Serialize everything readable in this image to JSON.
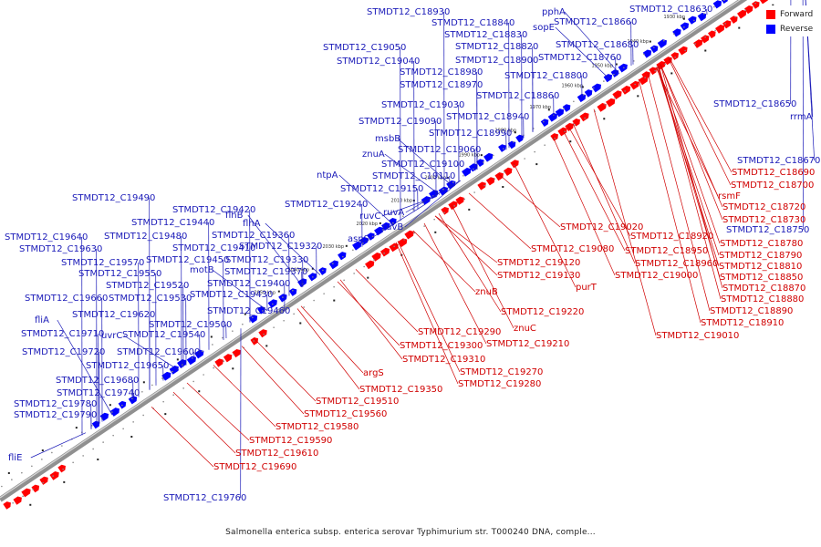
{
  "caption": "Salmonella enterica subsp. enterica serovar Typhimurium str. T000240 DNA, comple...",
  "legend": {
    "forward_label": "Forward",
    "reverse_label": "Reverse",
    "forward_color": "#ff0000",
    "reverse_color": "#0000ff"
  },
  "colors": {
    "forward_text": "#d00000",
    "reverse_text": "#1a1ab8",
    "backbone": "#909090"
  },
  "ticks": [
    "1930 kbp",
    "1940 kbp",
    "1950 kbp",
    "1960 kbp",
    "1970 kbp",
    "1980 kbp",
    "1990 kbp",
    "2000 kbp",
    "2010 kbp",
    "2020 kbp",
    "2030 kbp",
    "2040 kbp",
    "2050 kbp"
  ],
  "reverse_labels": [
    "STMDT12_C18930",
    "pphA",
    "STMDT12_C18630",
    "STMDT12_C18840",
    "sopE",
    "STMDT12_C18660",
    "STMDT12_C18830",
    "STMDT12_C19050",
    "STMDT12_C18820",
    "STMDT12_C18680",
    "STMDT12_C19040",
    "STMDT12_C18900",
    "STMDT12_C18760",
    "STMDT12_C18980",
    "STMDT12_C18800",
    "STMDT12_C18970",
    "STMDT12_C18860",
    "STMDT12_C19030",
    "STMDT12_C18940",
    "STMDT12_C19090",
    "STMDT12_C18990",
    "msbB",
    "STMDT12_C19060",
    "znuA",
    "STMDT12_C19100",
    "ntpA",
    "STMDT12_C19110",
    "STMDT12_C19150",
    "STMDT12_C19490",
    "STMDT12_C19240",
    "STMDT12_C19420",
    "flhB",
    "ruvB",
    "STMDT12_C19440",
    "flhA",
    "ruvC",
    "ruvA",
    "STMDT12_C19480",
    "STMDT12_C19360",
    "STMDT12_C19640",
    "aspS",
    "STMDT12_C19410",
    "STMDT12_C19320",
    "STMDT12_C19630",
    "STMDT12_C19450",
    "STMDT12_C19330",
    "STMDT12_C19570",
    "motB",
    "STMDT12_C19370",
    "STMDT12_C19550",
    "STMDT12_C19520",
    "STMDT12_C19400",
    "STMDT12_C19660",
    "STMDT12_C19530",
    "STMDT12_C19430",
    "STMDT12_C19620",
    "STMDT12_C19460",
    "fliA",
    "STMDT12_C19500",
    "STMDT12_C19710",
    "uvrC",
    "STMDT12_C19540",
    "STMDT12_C19720",
    "STMDT12_C19600",
    "STMDT12_C19650",
    "STMDT12_C19680",
    "STMDT12_C19740",
    "STMDT12_C19780",
    "STMDT12_C19790",
    "fliE",
    "STMDT12_C19760",
    "STMDT12_C18650",
    "rrmA",
    "STMDT12_C18670",
    "STMDT12_C18750"
  ],
  "forward_labels": [
    "STMDT12_C18690",
    "STMDT12_C18700",
    "rsmF",
    "STMDT12_C18720",
    "STMDT12_C18730",
    "STMDT12_C19020",
    "STMDT12_C18920",
    "STMDT12_C18780",
    "STMDT12_C19080",
    "STMDT12_C18950",
    "STMDT12_C18790",
    "STMDT12_C18960",
    "STMDT12_C18810",
    "STMDT12_C19120",
    "STMDT12_C19000",
    "STMDT12_C18850",
    "STMDT12_C19130",
    "purT",
    "STMDT12_C18870",
    "znuB",
    "STMDT12_C18880",
    "STMDT12_C18890",
    "STMDT12_C19220",
    "znuC",
    "STMDT12_C18910",
    "STMDT12_C19290",
    "STMDT12_C19010",
    "STMDT12_C19210",
    "STMDT12_C19300",
    "STMDT12_C19310",
    "argS",
    "STMDT12_C19270",
    "STMDT12_C19350",
    "STMDT12_C19280",
    "STMDT12_C19510",
    "STMDT12_C19560",
    "STMDT12_C19580",
    "STMDT12_C19590",
    "STMDT12_C19610",
    "STMDT12_C19690"
  ]
}
